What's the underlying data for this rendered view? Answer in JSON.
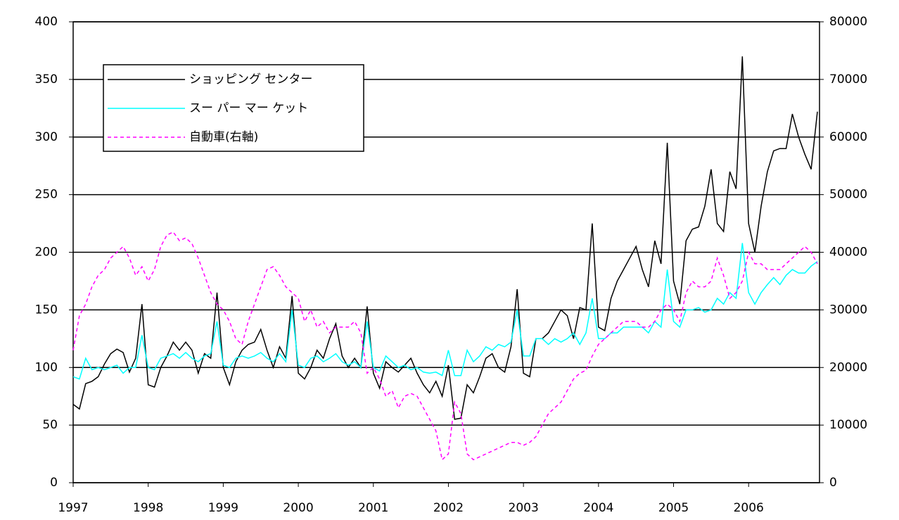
{
  "chart_data": {
    "type": "line",
    "categories": [
      "1997",
      null,
      null,
      null,
      null,
      null,
      null,
      null,
      null,
      null,
      null,
      null,
      "1998",
      null,
      null,
      null,
      null,
      null,
      null,
      null,
      null,
      null,
      null,
      null,
      "1999",
      null,
      null,
      null,
      null,
      null,
      null,
      null,
      null,
      null,
      null,
      null,
      "2000",
      null,
      null,
      null,
      null,
      null,
      null,
      null,
      null,
      null,
      null,
      null,
      "2001",
      null,
      null,
      null,
      null,
      null,
      null,
      null,
      null,
      null,
      null,
      null,
      "2002",
      null,
      null,
      null,
      null,
      null,
      null,
      null,
      null,
      null,
      null,
      null,
      "2003",
      null,
      null,
      null,
      null,
      null,
      null,
      null,
      null,
      null,
      null,
      null,
      "2004",
      null,
      null,
      null,
      null,
      null,
      null,
      null,
      null,
      null,
      null,
      null,
      "2005",
      null,
      null,
      null,
      null,
      null,
      null,
      null,
      null,
      null,
      null,
      null,
      "2006",
      null,
      null,
      null,
      null,
      null,
      null,
      null,
      null,
      null,
      null,
      null
    ],
    "series": [
      {
        "name": "ショッピング センター",
        "color": "#000000",
        "style": "solid",
        "values": [
          68,
          64,
          86,
          88,
          92,
          103,
          112,
          116,
          113,
          96,
          108,
          155,
          85,
          83,
          100,
          110,
          122,
          115,
          122,
          115,
          95,
          112,
          108,
          165,
          100,
          85,
          105,
          115,
          120,
          122,
          133,
          115,
          100,
          118,
          108,
          162,
          95,
          90,
          100,
          115,
          108,
          125,
          138,
          110,
          100,
          108,
          100,
          153,
          95,
          82,
          105,
          100,
          96,
          102,
          108,
          95,
          85,
          78,
          88,
          75,
          102,
          55,
          56,
          85,
          78,
          92,
          108,
          112,
          100,
          96,
          118,
          168,
          95,
          92,
          125,
          125,
          130,
          140,
          150,
          145,
          125,
          152,
          150,
          225,
          135,
          132,
          160,
          175,
          185,
          195,
          205,
          185,
          170,
          210,
          190,
          295,
          175,
          155,
          210,
          220,
          222,
          240,
          272,
          225,
          218,
          270,
          255,
          370,
          225,
          200,
          240,
          270,
          288,
          290,
          290,
          320,
          300,
          285,
          272,
          322
        ]
      },
      {
        "name": "スー パー マー ケット",
        "color": "#00ffff",
        "style": "solid",
        "values": [
          92,
          90,
          108,
          98,
          100,
          98,
          100,
          102,
          95,
          100,
          100,
          128,
          100,
          98,
          108,
          110,
          112,
          108,
          113,
          108,
          105,
          110,
          112,
          140,
          102,
          100,
          108,
          110,
          108,
          110,
          113,
          108,
          105,
          112,
          105,
          150,
          102,
          100,
          108,
          110,
          105,
          108,
          112,
          105,
          102,
          105,
          100,
          140,
          100,
          97,
          110,
          105,
          100,
          102,
          98,
          100,
          96,
          95,
          96,
          93,
          115,
          93,
          93,
          115,
          105,
          110,
          118,
          115,
          120,
          118,
          122,
          150,
          110,
          110,
          125,
          125,
          120,
          125,
          122,
          125,
          130,
          120,
          130,
          160,
          125,
          125,
          130,
          130,
          135,
          135,
          135,
          135,
          130,
          140,
          135,
          185,
          140,
          135,
          150,
          150,
          152,
          148,
          150,
          160,
          155,
          165,
          160,
          208,
          165,
          155,
          165,
          172,
          178,
          172,
          180,
          185,
          182,
          182,
          188,
          192
        ]
      },
      {
        "name": "自動車(右軸)",
        "color": "#ff00ff",
        "style": "dashed",
        "axis": "y2",
        "values": [
          23000,
          29000,
          31000,
          34000,
          36000,
          37000,
          39000,
          40000,
          41000,
          39000,
          36000,
          37500,
          35000,
          37000,
          41000,
          43000,
          43500,
          42000,
          42500,
          41500,
          39000,
          36000,
          33000,
          31000,
          30000,
          28000,
          25000,
          24000,
          28000,
          31000,
          34000,
          37000,
          37500,
          36000,
          34000,
          33000,
          32000,
          28000,
          30000,
          27000,
          28000,
          26000,
          27000,
          27000,
          27000,
          28000,
          26000,
          19000,
          20000,
          18000,
          15000,
          16000,
          13000,
          15000,
          15500,
          15000,
          13000,
          11000,
          9000,
          4000,
          5000,
          14000,
          12000,
          5000,
          4000,
          4500,
          5000,
          5500,
          6000,
          6500,
          7000,
          7000,
          6500,
          7000,
          8000,
          10000,
          12000,
          13000,
          14000,
          16000,
          18000,
          19000,
          19500,
          22000,
          24000,
          25000,
          26000,
          27000,
          28000,
          28000,
          28000,
          27000,
          27000,
          28000,
          30000,
          31000,
          30000,
          28000,
          33000,
          35000,
          34000,
          34000,
          35000,
          39000,
          36000,
          32000,
          33000,
          35000,
          40000,
          38000,
          38000,
          37000,
          37000,
          37000,
          38000,
          39000,
          40000,
          41000,
          40000,
          38000
        ]
      }
    ],
    "ylim": [
      0,
      400
    ],
    "yticks": [
      0,
      50,
      100,
      150,
      200,
      250,
      300,
      350,
      400
    ],
    "y2lim": [
      0,
      80000
    ],
    "y2ticks": [
      0,
      10000,
      20000,
      30000,
      40000,
      50000,
      60000,
      70000,
      80000
    ],
    "grid": true,
    "legend": "upper-left"
  }
}
